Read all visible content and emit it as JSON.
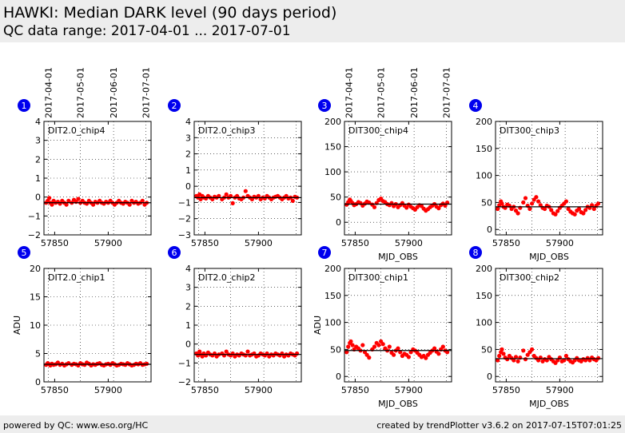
{
  "header": {
    "title": "HAWKI: Median DARK level (90 days period)",
    "subtitle": "QC data range: 2017-04-01 ... 2017-07-01"
  },
  "footer": {
    "left": "powered by QC: www.eso.org/HC",
    "right": "created by trendPlotter v3.6.2 on 2017-07-15T07:01:25"
  },
  "colors": {
    "points": "#ff0000",
    "badge": "#0000ee",
    "median": "#000000"
  },
  "chart_data": [
    {
      "id": "1",
      "type": "scatter",
      "label": "DIT2.0_chip4",
      "xlim": [
        57840,
        57940
      ],
      "ylim": [
        -2,
        4
      ],
      "yticks": [
        -2,
        -1,
        0,
        1,
        2,
        3,
        4
      ],
      "xticks": [
        57850,
        57900
      ],
      "xticklabels": [
        "57850",
        "57900"
      ],
      "dateticks": [
        57844,
        57874,
        57905,
        57935
      ],
      "datelabels": [
        "2017-04-01",
        "2017-05-01",
        "2017-06-01",
        "2017-07-01"
      ],
      "xlabel": "",
      "ylabel": "",
      "median": -0.3,
      "x": [
        57842,
        57843.5,
        57845,
        57846,
        57847.5,
        57849,
        57851,
        57853,
        57855,
        57857,
        57859,
        57861,
        57863,
        57866,
        57868,
        57870,
        57872,
        57874,
        57876,
        57878,
        57880,
        57882,
        57884,
        57886,
        57888,
        57890,
        57892,
        57894,
        57896,
        57898,
        57900,
        57902,
        57904,
        57906,
        57908,
        57910,
        57912,
        57914,
        57916,
        57918,
        57920,
        57922,
        57924,
        57926,
        57928,
        57930,
        57932,
        57934,
        57936
      ],
      "y": [
        -0.3,
        -0.2,
        -0.05,
        -0.3,
        -0.4,
        -0.2,
        -0.3,
        -0.25,
        -0.35,
        -0.2,
        -0.3,
        -0.4,
        -0.2,
        -0.3,
        -0.15,
        -0.25,
        -0.1,
        -0.3,
        -0.2,
        -0.3,
        -0.35,
        -0.2,
        -0.3,
        -0.4,
        -0.25,
        -0.3,
        -0.2,
        -0.3,
        -0.35,
        -0.25,
        -0.3,
        -0.2,
        -0.3,
        -0.4,
        -0.3,
        -0.2,
        -0.3,
        -0.35,
        -0.25,
        -0.3,
        -0.4,
        -0.2,
        -0.3,
        -0.25,
        -0.35,
        -0.3,
        -0.2,
        -0.4,
        -0.3
      ]
    },
    {
      "id": "2",
      "type": "scatter",
      "label": "DIT2.0_chip3",
      "xlim": [
        57840,
        57940
      ],
      "ylim": [
        -3,
        4
      ],
      "yticks": [
        -3,
        -2,
        -1,
        0,
        1,
        2,
        3,
        4
      ],
      "xticks": [
        57850,
        57900
      ],
      "xticklabels": [
        "57850",
        "57900"
      ],
      "dateticks": [
        57844,
        57874,
        57905,
        57935
      ],
      "datelabels": [],
      "xlabel": "",
      "ylabel": "",
      "median": -0.7,
      "x": [
        57842,
        57843.5,
        57845,
        57846,
        57847.5,
        57849,
        57851,
        57853,
        57855,
        57857,
        57859,
        57861,
        57863,
        57866,
        57868,
        57870,
        57872,
        57874,
        57876,
        57878,
        57880,
        57882,
        57884,
        57886,
        57888,
        57890,
        57892,
        57894,
        57896,
        57898,
        57900,
        57902,
        57904,
        57906,
        57908,
        57910,
        57912,
        57914,
        57916,
        57918,
        57920,
        57922,
        57924,
        57926,
        57928,
        57930,
        57932,
        57934,
        57936
      ],
      "y": [
        -0.6,
        -0.7,
        -0.5,
        -0.8,
        -0.6,
        -0.7,
        -0.75,
        -0.6,
        -0.7,
        -0.8,
        -0.65,
        -0.7,
        -0.6,
        -0.8,
        -0.7,
        -0.5,
        -0.7,
        -0.6,
        -1.05,
        -0.7,
        -0.6,
        -0.75,
        -0.8,
        -0.7,
        -0.3,
        -0.6,
        -0.7,
        -0.8,
        -0.65,
        -0.7,
        -0.6,
        -0.8,
        -0.7,
        -0.75,
        -0.6,
        -0.7,
        -0.8,
        -0.7,
        -0.65,
        -0.6,
        -0.7,
        -0.8,
        -0.7,
        -0.6,
        -0.75,
        -0.7,
        -0.9,
        -0.65,
        -0.7
      ]
    },
    {
      "id": "3",
      "type": "scatter",
      "label": "DIT300_chip4",
      "xlim": [
        57840,
        57940
      ],
      "ylim": [
        -25,
        200
      ],
      "yticks": [
        0,
        50,
        100,
        150,
        200
      ],
      "xticks": [
        57850,
        57900
      ],
      "xticklabels": [
        "57850",
        "57900"
      ],
      "dateticks": [
        57844,
        57874,
        57905,
        57935
      ],
      "datelabels": [
        "2017-04-01",
        "2017-05-01",
        "2017-06-01",
        "2017-07-01"
      ],
      "xlabel": "MJD_OBS",
      "ylabel": "",
      "median": 36,
      "x": [
        57842,
        57843.5,
        57845,
        57846,
        57847.5,
        57849,
        57851,
        57853,
        57855,
        57857,
        57859,
        57861,
        57863,
        57866,
        57868,
        57870,
        57872,
        57874,
        57876,
        57878,
        57880,
        57882,
        57884,
        57886,
        57888,
        57890,
        57892,
        57894,
        57896,
        57898,
        57900,
        57902,
        57904,
        57906,
        57908,
        57910,
        57912,
        57914,
        57916,
        57918,
        57920,
        57922,
        57924,
        57926,
        57928,
        57930,
        57932,
        57934,
        57936
      ],
      "y": [
        35,
        40,
        45,
        42,
        38,
        34,
        36,
        40,
        38,
        33,
        37,
        41,
        39,
        35,
        30,
        38,
        44,
        47,
        42,
        40,
        36,
        34,
        38,
        32,
        36,
        30,
        34,
        38,
        33,
        29,
        35,
        31,
        28,
        25,
        30,
        34,
        32,
        27,
        23,
        26,
        30,
        33,
        36,
        31,
        28,
        34,
        37,
        33,
        39
      ]
    },
    {
      "id": "4",
      "type": "scatter",
      "label": "DIT300_chip3",
      "xlim": [
        57840,
        57940
      ],
      "ylim": [
        -10,
        200
      ],
      "yticks": [
        0,
        50,
        100,
        150,
        200
      ],
      "xticks": [
        57850,
        57900
      ],
      "xticklabels": [
        "57850",
        "57900"
      ],
      "dateticks": [
        57844,
        57874,
        57905,
        57935
      ],
      "datelabels": [],
      "xlabel": "MJD_OBS",
      "ylabel": "",
      "median": 42,
      "x": [
        57842,
        57843.5,
        57845,
        57846,
        57847.5,
        57849,
        57851,
        57853,
        57855,
        57857,
        57859,
        57861,
        57863,
        57866,
        57868,
        57870,
        57872,
        57874,
        57876,
        57878,
        57880,
        57882,
        57884,
        57886,
        57888,
        57890,
        57892,
        57894,
        57896,
        57898,
        57900,
        57902,
        57904,
        57906,
        57908,
        57910,
        57912,
        57914,
        57916,
        57918,
        57920,
        57922,
        57924,
        57926,
        57928,
        57930,
        57932,
        57934,
        57936
      ],
      "y": [
        38,
        45,
        52,
        48,
        42,
        40,
        46,
        44,
        38,
        42,
        35,
        30,
        40,
        50,
        58,
        44,
        38,
        48,
        55,
        60,
        52,
        45,
        40,
        38,
        44,
        42,
        36,
        30,
        28,
        34,
        40,
        44,
        48,
        52,
        38,
        33,
        30,
        28,
        35,
        38,
        32,
        30,
        36,
        42,
        40,
        45,
        38,
        44,
        48
      ]
    },
    {
      "id": "5",
      "type": "scatter",
      "label": "DIT2.0_chip1",
      "xlim": [
        57840,
        57940
      ],
      "ylim": [
        0,
        20
      ],
      "yticks": [
        0,
        5,
        10,
        15,
        20
      ],
      "xticks": [
        57850,
        57900
      ],
      "xticklabels": [
        "57850",
        "57900"
      ],
      "dateticks": [
        57844,
        57874,
        57905,
        57935
      ],
      "datelabels": [],
      "xlabel": "",
      "ylabel": "ADU",
      "median": 3.1,
      "x": [
        57842,
        57843.5,
        57845,
        57846,
        57847.5,
        57849,
        57851,
        57853,
        57855,
        57857,
        57859,
        57861,
        57863,
        57866,
        57868,
        57870,
        57872,
        57874,
        57876,
        57878,
        57880,
        57882,
        57884,
        57886,
        57888,
        57890,
        57892,
        57894,
        57896,
        57898,
        57900,
        57902,
        57904,
        57906,
        57908,
        57910,
        57912,
        57914,
        57916,
        57918,
        57920,
        57922,
        57924,
        57926,
        57928,
        57930,
        57932,
        57934,
        57936
      ],
      "y": [
        3.0,
        3.3,
        3.1,
        2.9,
        3.2,
        3.0,
        3.1,
        3.4,
        3.0,
        3.2,
        2.9,
        3.1,
        3.3,
        3.0,
        3.2,
        3.1,
        2.9,
        3.3,
        3.1,
        3.0,
        3.4,
        3.2,
        2.9,
        3.1,
        3.0,
        3.2,
        3.3,
        3.0,
        2.9,
        3.1,
        3.2,
        3.0,
        3.3,
        3.1,
        2.9,
        3.0,
        3.2,
        3.1,
        3.0,
        3.3,
        3.1,
        2.9,
        3.0,
        3.2,
        3.1,
        3.3,
        3.0,
        3.1,
        3.2
      ]
    },
    {
      "id": "6",
      "type": "scatter",
      "label": "DIT2.0_chip2",
      "xlim": [
        57840,
        57940
      ],
      "ylim": [
        -2,
        4
      ],
      "yticks": [
        -2,
        -1,
        0,
        1,
        2,
        3,
        4
      ],
      "xticks": [
        57850,
        57900
      ],
      "xticklabels": [
        "57850",
        "57900"
      ],
      "dateticks": [
        57844,
        57874,
        57905,
        57935
      ],
      "datelabels": [],
      "xlabel": "",
      "ylabel": "",
      "median": -0.55,
      "x": [
        57842,
        57843.5,
        57845,
        57846,
        57847.5,
        57849,
        57851,
        57853,
        57855,
        57857,
        57859,
        57861,
        57863,
        57866,
        57868,
        57870,
        57872,
        57874,
        57876,
        57878,
        57880,
        57882,
        57884,
        57886,
        57888,
        57890,
        57892,
        57894,
        57896,
        57898,
        57900,
        57902,
        57904,
        57906,
        57908,
        57910,
        57912,
        57914,
        57916,
        57918,
        57920,
        57922,
        57924,
        57926,
        57928,
        57930,
        57932,
        57934,
        57936
      ],
      "y": [
        -0.5,
        -0.6,
        -0.4,
        -0.55,
        -0.65,
        -0.5,
        -0.6,
        -0.45,
        -0.55,
        -0.6,
        -0.5,
        -0.65,
        -0.55,
        -0.5,
        -0.6,
        -0.4,
        -0.55,
        -0.6,
        -0.5,
        -0.65,
        -0.55,
        -0.6,
        -0.5,
        -0.55,
        -0.6,
        -0.4,
        -0.6,
        -0.55,
        -0.5,
        -0.65,
        -0.6,
        -0.5,
        -0.55,
        -0.6,
        -0.5,
        -0.65,
        -0.55,
        -0.6,
        -0.5,
        -0.55,
        -0.6,
        -0.5,
        -0.65,
        -0.55,
        -0.6,
        -0.5,
        -0.55,
        -0.6,
        -0.5
      ]
    },
    {
      "id": "7",
      "type": "scatter",
      "label": "DIT300_chip1",
      "xlim": [
        57840,
        57940
      ],
      "ylim": [
        -10,
        200
      ],
      "yticks": [
        0,
        50,
        100,
        150,
        200
      ],
      "xticks": [
        57850,
        57900
      ],
      "xticklabels": [
        "57850",
        "57900"
      ],
      "dateticks": [
        57844,
        57874,
        57905,
        57935
      ],
      "datelabels": [],
      "xlabel": "MJD_OBS",
      "ylabel": "ADU",
      "median": 48,
      "x": [
        57842,
        57843.5,
        57845,
        57846,
        57847.5,
        57849,
        57851,
        57853,
        57855,
        57857,
        57859,
        57861,
        57863,
        57866,
        57868,
        57870,
        57872,
        57874,
        57876,
        57878,
        57880,
        57882,
        57884,
        57886,
        57888,
        57890,
        57892,
        57894,
        57896,
        57898,
        57900,
        57902,
        57904,
        57906,
        57908,
        57910,
        57912,
        57914,
        57916,
        57918,
        57920,
        57922,
        57924,
        57926,
        57928,
        57930,
        57932,
        57934,
        57936
      ],
      "y": [
        45,
        55,
        62,
        65,
        58,
        50,
        55,
        52,
        48,
        58,
        45,
        40,
        35,
        50,
        55,
        62,
        58,
        65,
        60,
        52,
        48,
        55,
        44,
        40,
        48,
        52,
        45,
        38,
        42,
        40,
        36,
        45,
        50,
        48,
        44,
        40,
        36,
        38,
        34,
        40,
        44,
        48,
        52,
        46,
        42,
        50,
        55,
        48,
        45
      ]
    },
    {
      "id": "8",
      "type": "scatter",
      "label": "DIT300_chip2",
      "xlim": [
        57840,
        57940
      ],
      "ylim": [
        -10,
        200
      ],
      "yticks": [
        0,
        50,
        100,
        150,
        200
      ],
      "xticks": [
        57850,
        57900
      ],
      "xticklabels": [
        "57850",
        "57900"
      ],
      "dateticks": [
        57844,
        57874,
        57905,
        57935
      ],
      "datelabels": [],
      "xlabel": "MJD_OBS",
      "ylabel": "",
      "median": 33,
      "x": [
        57842,
        57843.5,
        57845,
        57846,
        57847.5,
        57849,
        57851,
        57853,
        57855,
        57857,
        57859,
        57861,
        57863,
        57866,
        57868,
        57870,
        57872,
        57874,
        57876,
        57878,
        57880,
        57882,
        57884,
        57886,
        57888,
        57890,
        57892,
        57894,
        57896,
        57898,
        57900,
        57902,
        57904,
        57906,
        57908,
        57910,
        57912,
        57914,
        57916,
        57918,
        57920,
        57922,
        57924,
        57926,
        57928,
        57930,
        57932,
        57934,
        57936
      ],
      "y": [
        30,
        38,
        45,
        50,
        42,
        35,
        32,
        38,
        34,
        30,
        36,
        28,
        35,
        48,
        32,
        40,
        45,
        50,
        38,
        34,
        30,
        35,
        28,
        32,
        30,
        36,
        32,
        28,
        25,
        30,
        35,
        28,
        30,
        38,
        32,
        28,
        26,
        30,
        34,
        30,
        28,
        32,
        30,
        34,
        30,
        35,
        32,
        30,
        34
      ]
    }
  ]
}
